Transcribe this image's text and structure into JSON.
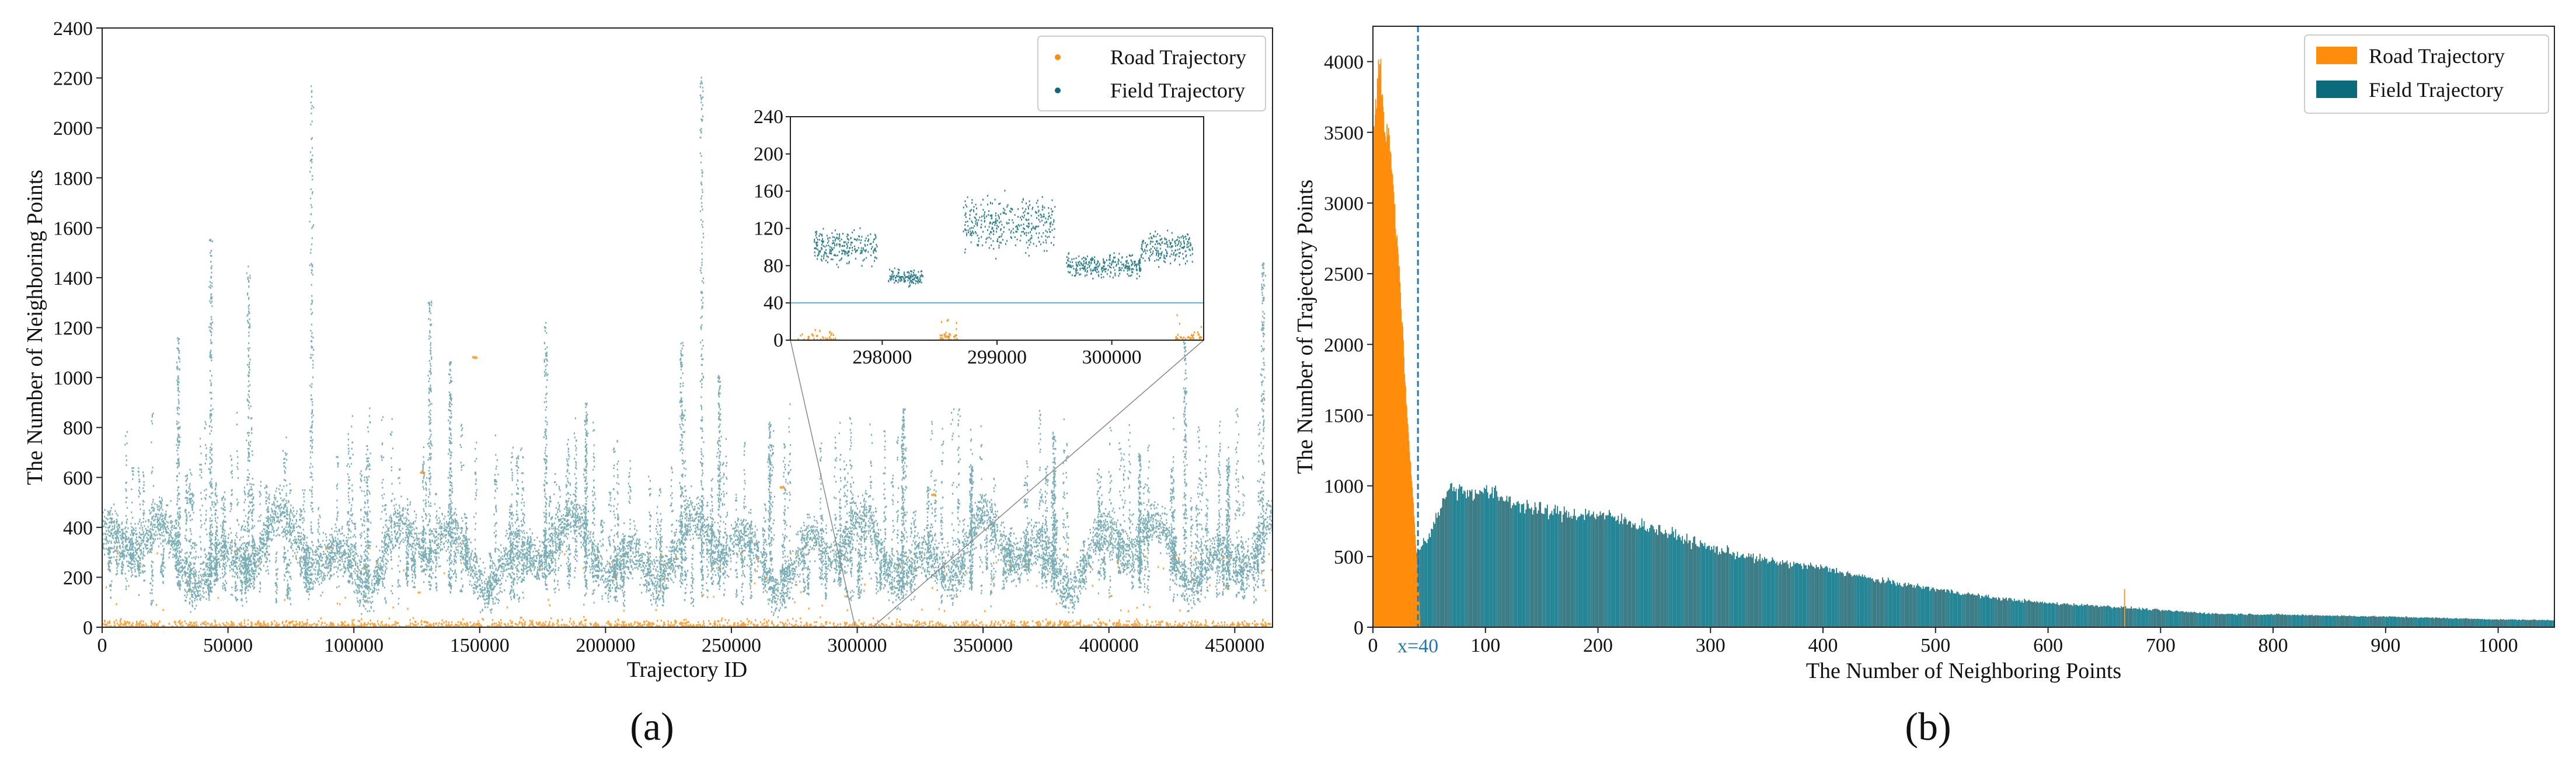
{
  "colors": {
    "road": "#ff8c0a",
    "field": "#0c6b7a",
    "threshold": "#1f77b4",
    "inset_line": "#5ab4d6"
  },
  "chart_data": [
    {
      "type": "scatter",
      "panel_label": "(a)",
      "xlabel": "Trajectory ID",
      "ylabel": "The Number of Neighboring Points",
      "xlim": [
        0,
        465000
      ],
      "ylim": [
        0,
        2400
      ],
      "xticks": [
        "0",
        "50000",
        "100000",
        "150000",
        "200000",
        "250000",
        "300000",
        "350000",
        "400000",
        "450000"
      ],
      "yticks": [
        "0",
        "200",
        "400",
        "600",
        "800",
        "1000",
        "1200",
        "1400",
        "1600",
        "1800",
        "2000",
        "2200",
        "2400"
      ],
      "legend": [
        "Road Trajectory",
        "Field Trajectory"
      ],
      "series": [
        {
          "name": "Road Trajectory",
          "typical_range": [
            0,
            60
          ],
          "outliers": [
            {
              "x": 148000,
              "y": 1080
            },
            {
              "x": 127000,
              "y": 620
            },
            {
              "x": 270000,
              "y": 560
            },
            {
              "x": 330000,
              "y": 530
            }
          ]
        },
        {
          "name": "Field Trajectory",
          "spikes": [
            {
              "x": 30000,
              "y": 1170
            },
            {
              "x": 43000,
              "y": 1560
            },
            {
              "x": 58000,
              "y": 1450
            },
            {
              "x": 83000,
              "y": 2170
            },
            {
              "x": 130000,
              "y": 1310
            },
            {
              "x": 138000,
              "y": 1070
            },
            {
              "x": 176000,
              "y": 1220
            },
            {
              "x": 192000,
              "y": 900
            },
            {
              "x": 230000,
              "y": 1140
            },
            {
              "x": 238000,
              "y": 2220
            },
            {
              "x": 245000,
              "y": 1020
            },
            {
              "x": 265000,
              "y": 820
            },
            {
              "x": 318000,
              "y": 880
            },
            {
              "x": 345000,
              "y": 650
            },
            {
              "x": 378000,
              "y": 780
            },
            {
              "x": 412000,
              "y": 700
            },
            {
              "x": 430000,
              "y": 1250
            },
            {
              "x": 447000,
              "y": 680
            },
            {
              "x": 461000,
              "y": 1460
            }
          ],
          "typical_range": [
            150,
            600
          ]
        }
      ],
      "inset": {
        "xlim": [
          297200,
          300800
        ],
        "ylim": [
          0,
          240
        ],
        "xticks": [
          "298000",
          "299000",
          "300000"
        ],
        "yticks": [
          "0",
          "40",
          "80",
          "120",
          "160",
          "200",
          "240"
        ],
        "threshold_y": 40,
        "field_segments": [
          {
            "x": [
              297400,
              297950
            ],
            "mean": 100,
            "spread": 30
          },
          {
            "x": [
              298050,
              298350
            ],
            "mean": 68,
            "spread": 14
          },
          {
            "x": [
              298700,
              299500
            ],
            "mean": 125,
            "spread": 45
          },
          {
            "x": [
              299600,
              300250
            ],
            "mean": 80,
            "spread": 22
          },
          {
            "x": [
              300250,
              300700
            ],
            "mean": 100,
            "spread": 30
          }
        ]
      }
    },
    {
      "type": "bar",
      "panel_label": "(b)",
      "xlabel": "The Number of Neighboring Points",
      "ylabel": "The Number of Trajectory Points",
      "xlim": [
        0,
        1050
      ],
      "ylim": [
        0,
        4250
      ],
      "xticks": [
        "0",
        "100",
        "200",
        "300",
        "400",
        "500",
        "600",
        "700",
        "800",
        "900",
        "1000"
      ],
      "yticks": [
        "0",
        "500",
        "1000",
        "1500",
        "2000",
        "2500",
        "3000",
        "3500",
        "4000"
      ],
      "legend": [
        "Road Trajectory",
        "Field Trajectory"
      ],
      "threshold_x": 40,
      "threshold_label": "x=40",
      "road_profile": [
        [
          0,
          3500
        ],
        [
          6,
          4000
        ],
        [
          10,
          3500
        ],
        [
          15,
          3400
        ],
        [
          20,
          2900
        ],
        [
          25,
          2300
        ],
        [
          30,
          1500
        ],
        [
          35,
          1000
        ],
        [
          40,
          350
        ],
        [
          42,
          0
        ]
      ],
      "road_outlier": {
        "x": 668,
        "y": 270
      },
      "field_profile": [
        [
          0,
          0
        ],
        [
          5,
          20
        ],
        [
          20,
          200
        ],
        [
          30,
          400
        ],
        [
          40,
          550
        ],
        [
          50,
          650
        ],
        [
          60,
          850
        ],
        [
          70,
          1000
        ],
        [
          80,
          960
        ],
        [
          100,
          960
        ],
        [
          120,
          900
        ],
        [
          150,
          820
        ],
        [
          180,
          800
        ],
        [
          200,
          800
        ],
        [
          250,
          700
        ],
        [
          300,
          560
        ],
        [
          350,
          470
        ],
        [
          400,
          420
        ],
        [
          450,
          330
        ],
        [
          500,
          270
        ],
        [
          550,
          210
        ],
        [
          600,
          170
        ],
        [
          650,
          150
        ],
        [
          700,
          120
        ],
        [
          750,
          95
        ],
        [
          800,
          90
        ],
        [
          900,
          75
        ],
        [
          1000,
          55
        ],
        [
          1050,
          50
        ]
      ]
    }
  ]
}
